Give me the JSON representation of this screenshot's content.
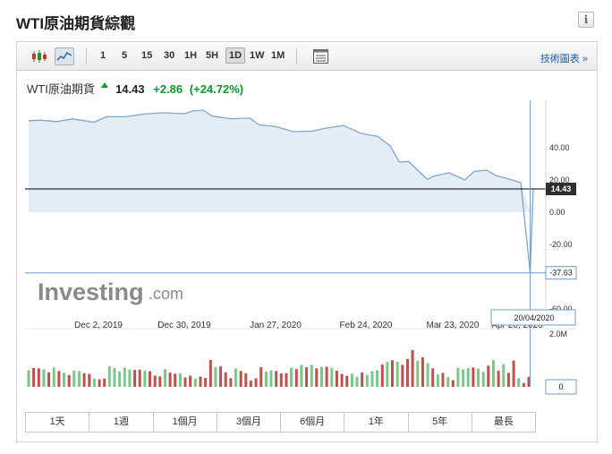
{
  "page": {
    "title": "WTI原油期貨綜觀",
    "info_icon": "info-icon"
  },
  "toolbar": {
    "chart_type_icons": [
      "candlestick-icon",
      "line-chart-icon"
    ],
    "timeframes": [
      "1",
      "5",
      "15",
      "30",
      "1H",
      "5H",
      "1D",
      "1W",
      "1M"
    ],
    "active_timeframe": "1D",
    "table_icon": "table-icon",
    "advanced_link": "技術圖表 »"
  },
  "quote": {
    "name": "WTI原油期貨",
    "price": "14.43",
    "change": "+2.86",
    "change_pct": "(+24.72%)"
  },
  "branding": {
    "logo_main": "Investing",
    "logo_suffix": ".com"
  },
  "price_axis": {
    "ticks": [
      "40.00",
      "20.00",
      "0.00",
      "-20.00",
      "-40.00",
      "-60.00"
    ]
  },
  "price_flags": {
    "last": "14.43",
    "cursor": "-37.63"
  },
  "date_axis": {
    "ticks": [
      "Dec 2, 2019",
      "Dec 30, 2019",
      "Jan 27, 2020",
      "Feb 24, 2020",
      "Mar 23, 2020",
      "Apr 20, 2020"
    ]
  },
  "cursor_date": "20/04/2020",
  "volume_axis": {
    "top": "2.0M",
    "bottom": "0"
  },
  "ranges": [
    "1天",
    "1週",
    "1個月",
    "3個月",
    "6個月",
    "1年",
    "5年",
    "最長"
  ],
  "colors": {
    "up": "#7cc68a",
    "down": "#c0504d",
    "area_fill": "#e4edf6",
    "line": "#7ea6cd",
    "crosshair": "#6f9cc8"
  },
  "chart_data": {
    "type": "area",
    "title": "WTI原油期貨",
    "x_range": [
      "2019-11-11",
      "2020-04-21"
    ],
    "xticks": [
      "Dec 2, 2019",
      "Dec 30, 2019",
      "Jan 27, 2020",
      "Feb 24, 2020",
      "Mar 23, 2020",
      "Apr 20, 2020"
    ],
    "ylim": [
      -40,
      55
    ],
    "yticks": [
      40,
      20,
      0,
      -20,
      -40
    ],
    "grid": false,
    "price_series": {
      "x": [
        "2019-11-11",
        "2019-11-15",
        "2019-11-20",
        "2019-11-25",
        "2019-12-02",
        "2019-12-06",
        "2019-12-12",
        "2019-12-18",
        "2019-12-24",
        "2019-12-31",
        "2020-01-03",
        "2020-01-06",
        "2020-01-09",
        "2020-01-15",
        "2020-01-21",
        "2020-01-24",
        "2020-01-29",
        "2020-02-04",
        "2020-02-10",
        "2020-02-14",
        "2020-02-20",
        "2020-02-26",
        "2020-03-02",
        "2020-03-06",
        "2020-03-09",
        "2020-03-12",
        "2020-03-18",
        "2020-03-20",
        "2020-03-25",
        "2020-03-30",
        "2020-04-02",
        "2020-04-06",
        "2020-04-09",
        "2020-04-14",
        "2020-04-17",
        "2020-04-20",
        "2020-04-21"
      ],
      "values": [
        56.8,
        57.1,
        56.2,
        57.9,
        55.9,
        59.2,
        59.2,
        60.9,
        61.7,
        61.1,
        63.0,
        63.3,
        59.6,
        58.0,
        58.4,
        54.2,
        53.3,
        50.0,
        50.3,
        52.0,
        53.8,
        48.7,
        47.1,
        41.3,
        31.1,
        31.5,
        20.4,
        22.4,
        24.5,
        20.1,
        25.3,
        26.1,
        22.8,
        20.1,
        18.3,
        -37.63,
        14.43
      ]
    },
    "volume_series": {
      "ylim": [
        0,
        2000000
      ],
      "values": [
        620000,
        700000,
        690000,
        650000,
        540000,
        720000,
        590000,
        520000,
        440000,
        610000,
        590000,
        510000,
        480000,
        300000,
        280000,
        310000,
        760000,
        700000,
        570000,
        710000,
        650000,
        630000,
        640000,
        610000,
        580000,
        420000,
        390000,
        650000,
        530000,
        490000,
        510000,
        350000,
        420000,
        310000,
        380000,
        330000,
        1000000,
        730000,
        760000,
        540000,
        320000,
        680000,
        590000,
        510000,
        230000,
        320000,
        730000,
        570000,
        610000,
        590000,
        500000,
        510000,
        710000,
        660000,
        820000,
        730000,
        820000,
        690000,
        740000,
        750000,
        710000,
        600000,
        480000,
        410000,
        490000,
        380000,
        540000,
        440000,
        580000,
        620000,
        830000,
        930000,
        990000,
        930000,
        820000,
        1030000,
        1370000,
        970000,
        1100000,
        880000,
        690000,
        460000,
        520000,
        360000,
        250000,
        710000,
        650000,
        700000,
        720000,
        680000,
        560000,
        790000,
        990000,
        600000,
        840000,
        520000,
        980000,
        320000,
        140000,
        370000
      ],
      "up": [
        1,
        0,
        0,
        1,
        0,
        1,
        0,
        1,
        0,
        1,
        1,
        0,
        0,
        1,
        0,
        0,
        1,
        1,
        1,
        1,
        1,
        0,
        0,
        1,
        0,
        0,
        0,
        1,
        0,
        0,
        1,
        0,
        0,
        1,
        0,
        0,
        0,
        1,
        0,
        0,
        0,
        1,
        0,
        0,
        0,
        0,
        0,
        1,
        1,
        0,
        0,
        0,
        1,
        0,
        1,
        0,
        1,
        0,
        1,
        0,
        1,
        0,
        0,
        0,
        1,
        1,
        0,
        1,
        1,
        1,
        0,
        1,
        0,
        1,
        0,
        0,
        0,
        1,
        0,
        1,
        0,
        1,
        0,
        1,
        0,
        1,
        1,
        1,
        0,
        1,
        1,
        0,
        1,
        0,
        1,
        0,
        0,
        1,
        0,
        0
      ]
    }
  }
}
